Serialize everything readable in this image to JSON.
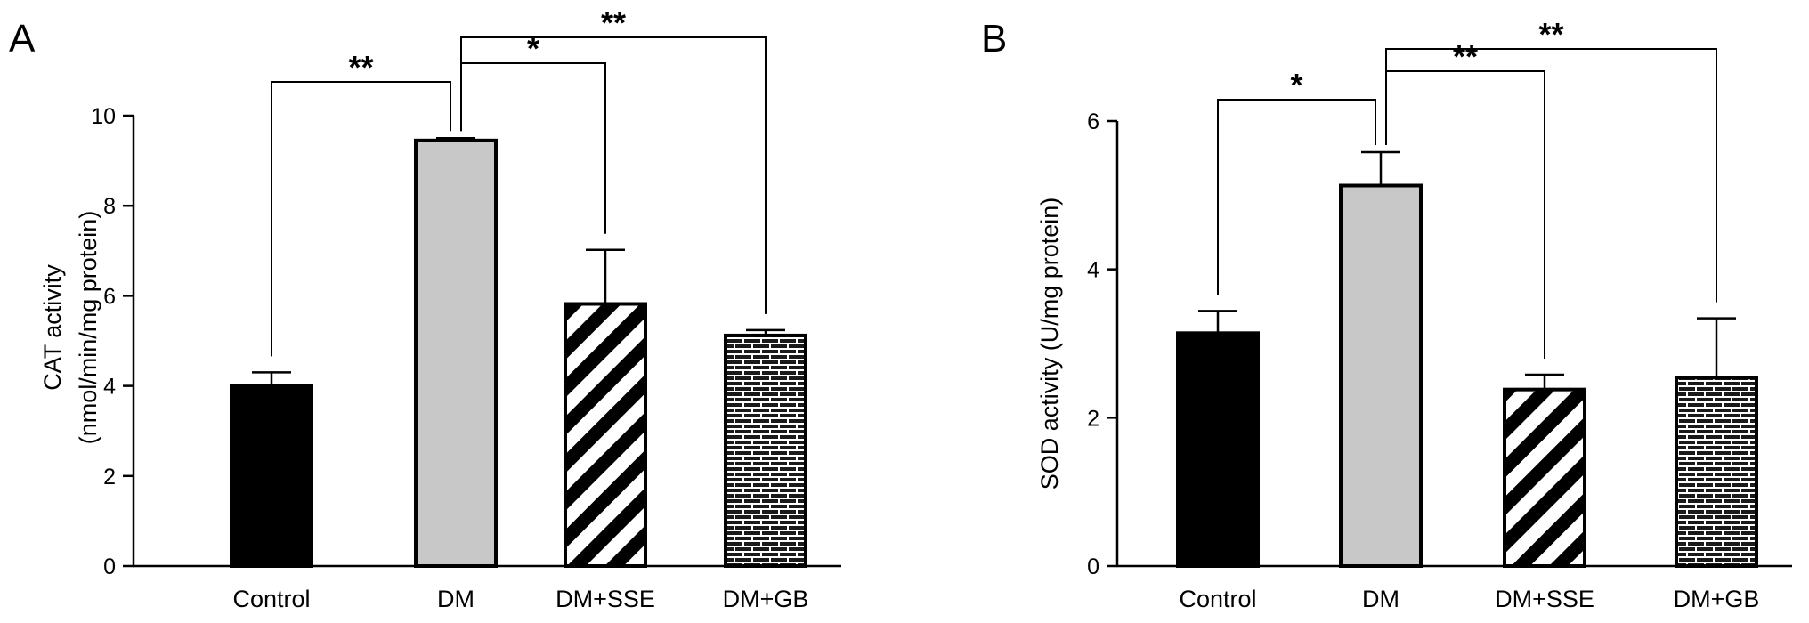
{
  "panels": [
    {
      "letter": "A"
    },
    {
      "letter": "B"
    }
  ],
  "colors": {
    "control": "#000000",
    "dm": "#c8c8c8",
    "outline": "#000000",
    "background": "#ffffff"
  },
  "chart_data": [
    {
      "type": "bar",
      "panel": "A",
      "categories": [
        "Control",
        "DM",
        "DM+SSE",
        "DM+GB"
      ],
      "values": [
        4.0,
        9.45,
        5.82,
        5.12
      ],
      "errors": [
        0.3,
        0.05,
        1.2,
        0.12
      ],
      "fill_patterns": [
        "solid-black",
        "solid-gray",
        "diagonal-stripes",
        "brick"
      ],
      "ylabel_lines": [
        "CAT activity",
        "(nmol/min/mg protein)"
      ],
      "xlabel": "",
      "ylim": [
        0,
        10
      ],
      "yticks": [
        0,
        2,
        4,
        6,
        8,
        10
      ],
      "grid": false,
      "significance": [
        {
          "from": 0,
          "to": 1,
          "label": "**",
          "level": 1
        },
        {
          "from": 1,
          "to": 2,
          "label": "*",
          "level": 2
        },
        {
          "from": 1,
          "to": 3,
          "label": "**",
          "level": 3
        }
      ]
    },
    {
      "type": "bar",
      "panel": "B",
      "categories": [
        "Control",
        "DM",
        "DM+SSE",
        "DM+GB"
      ],
      "values": [
        3.14,
        5.13,
        2.38,
        2.54
      ],
      "errors": [
        0.3,
        0.45,
        0.2,
        0.8
      ],
      "fill_patterns": [
        "solid-black",
        "solid-gray",
        "diagonal-stripes",
        "brick"
      ],
      "ylabel_lines": [
        "SOD activity (U/mg protein)"
      ],
      "xlabel": "",
      "ylim": [
        0,
        6
      ],
      "yticks": [
        0,
        2,
        4,
        6
      ],
      "grid": false,
      "significance": [
        {
          "from": 0,
          "to": 1,
          "label": "*",
          "level": 1
        },
        {
          "from": 1,
          "to": 2,
          "label": "**",
          "level": 2
        },
        {
          "from": 1,
          "to": 3,
          "label": "**",
          "level": 3
        }
      ]
    }
  ]
}
